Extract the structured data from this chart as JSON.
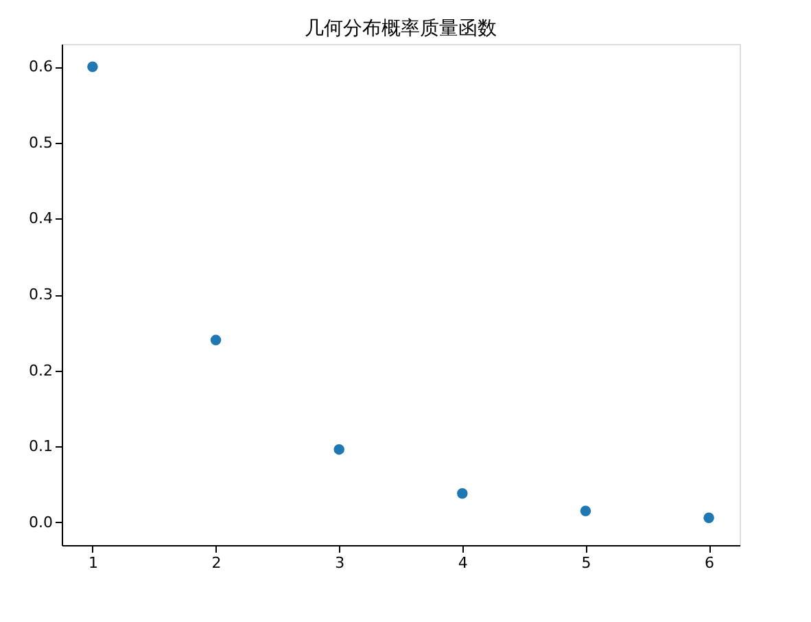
{
  "chart_data": {
    "type": "scatter",
    "title": "几何分布概率质量函数",
    "x": [
      1,
      2,
      3,
      4,
      5,
      6
    ],
    "series": [
      {
        "color": "#1f77b4",
        "values": [
          0.6,
          0.24,
          0.096,
          0.038,
          0.015,
          0.006
        ]
      }
    ],
    "xlim": [
      0.75,
      6.25
    ],
    "xticks": [
      1,
      2,
      3,
      4,
      5,
      6
    ],
    "ylim": [
      -0.03,
      0.63
    ],
    "yticks": [
      {
        "value": 0,
        "label": "0.0"
      },
      0.1,
      0.2,
      0.3,
      0.4,
      0.5,
      0.6
    ],
    "marker": "circle",
    "grid": false,
    "legend": false
  }
}
